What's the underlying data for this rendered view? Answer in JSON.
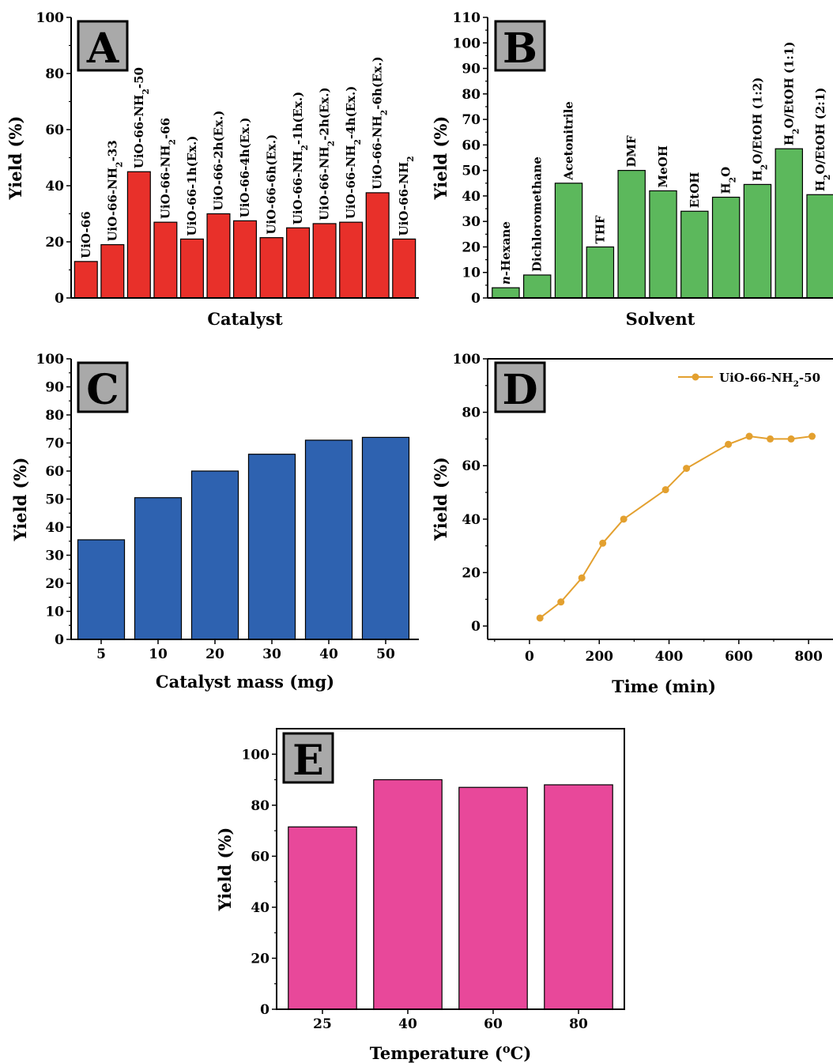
{
  "chart_data": [
    {
      "panel": "A",
      "type": "bar",
      "xlabel": "Catalyst",
      "ylabel": "Yield (%)",
      "ylim": [
        0,
        100
      ],
      "yticks": [
        0,
        20,
        40,
        60,
        80,
        100
      ],
      "color": "#e8302a",
      "categories": [
        "UiO-66",
        "UiO-66-NH2-33",
        "UiO-66-NH2-50",
        "UiO-66-NH2-66",
        "UiO-66-1h(Ex.)",
        "UiO-66-2h(Ex.)",
        "UiO-66-4h(Ex.)",
        "UiO-66-6h(Ex.)",
        "UiO-66-NH2-1h(Ex.)",
        "UiO-66-NH2-2h(Ex.)",
        "UiO-66-NH2-4h(Ex.)",
        "UiO-66-NH2-6h(Ex.)",
        "UiO-66-NH2"
      ],
      "values": [
        13,
        19,
        45,
        27,
        21,
        30,
        27.5,
        21.5,
        25,
        26.5,
        27,
        37.5,
        21
      ],
      "grid": false
    },
    {
      "panel": "B",
      "type": "bar",
      "xlabel": "Solvent",
      "ylabel": "Yield (%)",
      "ylim": [
        0,
        110
      ],
      "yticks": [
        0,
        10,
        20,
        30,
        40,
        50,
        60,
        70,
        80,
        90,
        100,
        110
      ],
      "color": "#5cb85c",
      "categories": [
        "n-Hexane",
        "Dichloromethane",
        "Acetonitrile",
        "THF",
        "DMF",
        "MeOH",
        "EtOH",
        "H2O",
        "H2O/EtOH (1:2)",
        "H2O/EtOH (1:1)",
        "H2O/EtOH (2:1)"
      ],
      "values": [
        4,
        9,
        45,
        20,
        50,
        42,
        34,
        39.5,
        44.5,
        58.5,
        40.5
      ],
      "grid": false
    },
    {
      "panel": "C",
      "type": "bar",
      "xlabel": "Catalyst mass (mg)",
      "ylabel": "Yield (%)",
      "ylim": [
        0,
        100
      ],
      "yticks": [
        0,
        10,
        20,
        30,
        40,
        50,
        60,
        70,
        80,
        90,
        100
      ],
      "color": "#2e62b0",
      "categories": [
        "5",
        "10",
        "20",
        "30",
        "40",
        "50"
      ],
      "values": [
        35.5,
        50.5,
        60,
        66,
        71,
        72
      ],
      "grid": false
    },
    {
      "panel": "D",
      "type": "line",
      "xlabel": "Time (min)",
      "ylabel": "Yield (%)",
      "xlim": [
        -120,
        870
      ],
      "ylim": [
        -5,
        100
      ],
      "xticks": [
        0,
        200,
        400,
        600,
        800
      ],
      "yticks": [
        0,
        20,
        40,
        60,
        80,
        100
      ],
      "color": "#e3a02f",
      "legend_position": "top-right",
      "series": [
        {
          "name": "UiO-66-NH2-50",
          "x": [
            30,
            90,
            150,
            210,
            270,
            390,
            450,
            570,
            630,
            690,
            750,
            810
          ],
          "y": [
            3,
            9,
            18,
            31,
            40,
            51,
            59,
            68,
            71,
            70,
            70,
            71
          ]
        }
      ],
      "grid": false
    },
    {
      "panel": "E",
      "type": "bar",
      "xlabel": "Temperature (oC)",
      "ylabel": "Yield (%)",
      "ylim": [
        0,
        110
      ],
      "yticks": [
        0,
        20,
        40,
        60,
        80,
        100
      ],
      "color": "#e8489a",
      "categories": [
        "25",
        "40",
        "60",
        "80"
      ],
      "values": [
        71.5,
        90,
        87,
        88
      ],
      "grid": false
    }
  ]
}
